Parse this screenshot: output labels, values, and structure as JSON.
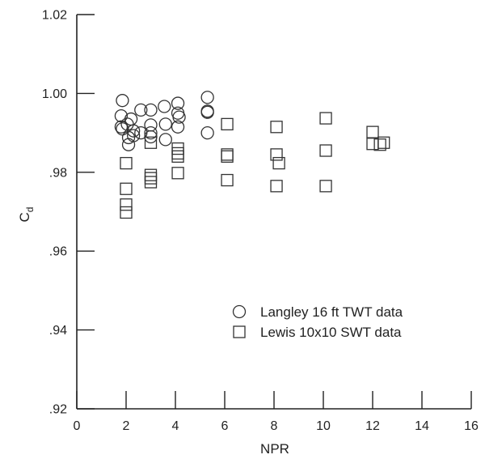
{
  "chart_data": {
    "type": "scatter",
    "xlabel": "NPR",
    "ylabel_main": "C",
    "ylabel_sub": "d",
    "xlim": [
      0,
      16
    ],
    "ylim": [
      0.92,
      1.02
    ],
    "x_ticks": [
      0,
      2,
      4,
      6,
      8,
      10,
      12,
      14,
      16
    ],
    "x_tick_labels": [
      "0",
      "2",
      "4",
      "6",
      "8",
      "10",
      "12",
      "14",
      "16"
    ],
    "y_ticks": [
      0.92,
      0.94,
      0.96,
      0.98,
      1.0,
      1.02
    ],
    "y_tick_labels": [
      ".92",
      ".94",
      ".96",
      ".98",
      "1.00",
      "1.02"
    ],
    "grid": false,
    "legend_position": "lower-right",
    "series": [
      {
        "name": "Langley 16 ft TWT data",
        "marker": "circle",
        "points": [
          {
            "x": 1.85,
            "y": 0.9982
          },
          {
            "x": 1.8,
            "y": 0.9943
          },
          {
            "x": 1.8,
            "y": 0.9915
          },
          {
            "x": 1.85,
            "y": 0.991
          },
          {
            "x": 2.05,
            "y": 0.9922
          },
          {
            "x": 2.1,
            "y": 0.987
          },
          {
            "x": 2.1,
            "y": 0.9888
          },
          {
            "x": 2.2,
            "y": 0.9935
          },
          {
            "x": 2.3,
            "y": 0.9905
          },
          {
            "x": 2.3,
            "y": 0.9893
          },
          {
            "x": 2.6,
            "y": 0.99
          },
          {
            "x": 2.6,
            "y": 0.9958
          },
          {
            "x": 3.0,
            "y": 0.9958
          },
          {
            "x": 3.0,
            "y": 0.992
          },
          {
            "x": 3.0,
            "y": 0.99
          },
          {
            "x": 3.0,
            "y": 0.989
          },
          {
            "x": 3.55,
            "y": 0.9967
          },
          {
            "x": 3.6,
            "y": 0.9922
          },
          {
            "x": 3.6,
            "y": 0.9883
          },
          {
            "x": 4.1,
            "y": 0.9975
          },
          {
            "x": 4.1,
            "y": 0.995
          },
          {
            "x": 4.15,
            "y": 0.994
          },
          {
            "x": 4.1,
            "y": 0.9915
          },
          {
            "x": 5.3,
            "y": 0.999
          },
          {
            "x": 5.3,
            "y": 0.9955
          },
          {
            "x": 5.3,
            "y": 0.9952
          },
          {
            "x": 5.3,
            "y": 0.99
          }
        ]
      },
      {
        "name": "Lewis 10x10 SWT data",
        "marker": "square",
        "points": [
          {
            "x": 2.0,
            "y": 0.9823
          },
          {
            "x": 2.0,
            "y": 0.9758
          },
          {
            "x": 2.0,
            "y": 0.9718
          },
          {
            "x": 2.0,
            "y": 0.9698
          },
          {
            "x": 3.0,
            "y": 0.9875
          },
          {
            "x": 3.0,
            "y": 0.9793
          },
          {
            "x": 3.0,
            "y": 0.9785
          },
          {
            "x": 3.0,
            "y": 0.9775
          },
          {
            "x": 4.1,
            "y": 0.986
          },
          {
            "x": 4.1,
            "y": 0.9848
          },
          {
            "x": 4.1,
            "y": 0.984
          },
          {
            "x": 4.1,
            "y": 0.9798
          },
          {
            "x": 6.1,
            "y": 0.9922
          },
          {
            "x": 6.1,
            "y": 0.9845
          },
          {
            "x": 6.1,
            "y": 0.984
          },
          {
            "x": 6.1,
            "y": 0.978
          },
          {
            "x": 8.1,
            "y": 0.9915
          },
          {
            "x": 8.1,
            "y": 0.9845
          },
          {
            "x": 8.2,
            "y": 0.9823
          },
          {
            "x": 8.1,
            "y": 0.9765
          },
          {
            "x": 10.1,
            "y": 0.9937
          },
          {
            "x": 10.1,
            "y": 0.9855
          },
          {
            "x": 10.1,
            "y": 0.9765
          },
          {
            "x": 12.0,
            "y": 0.9902
          },
          {
            "x": 12.0,
            "y": 0.9872
          },
          {
            "x": 12.3,
            "y": 0.987
          },
          {
            "x": 12.45,
            "y": 0.9875
          }
        ]
      }
    ]
  }
}
